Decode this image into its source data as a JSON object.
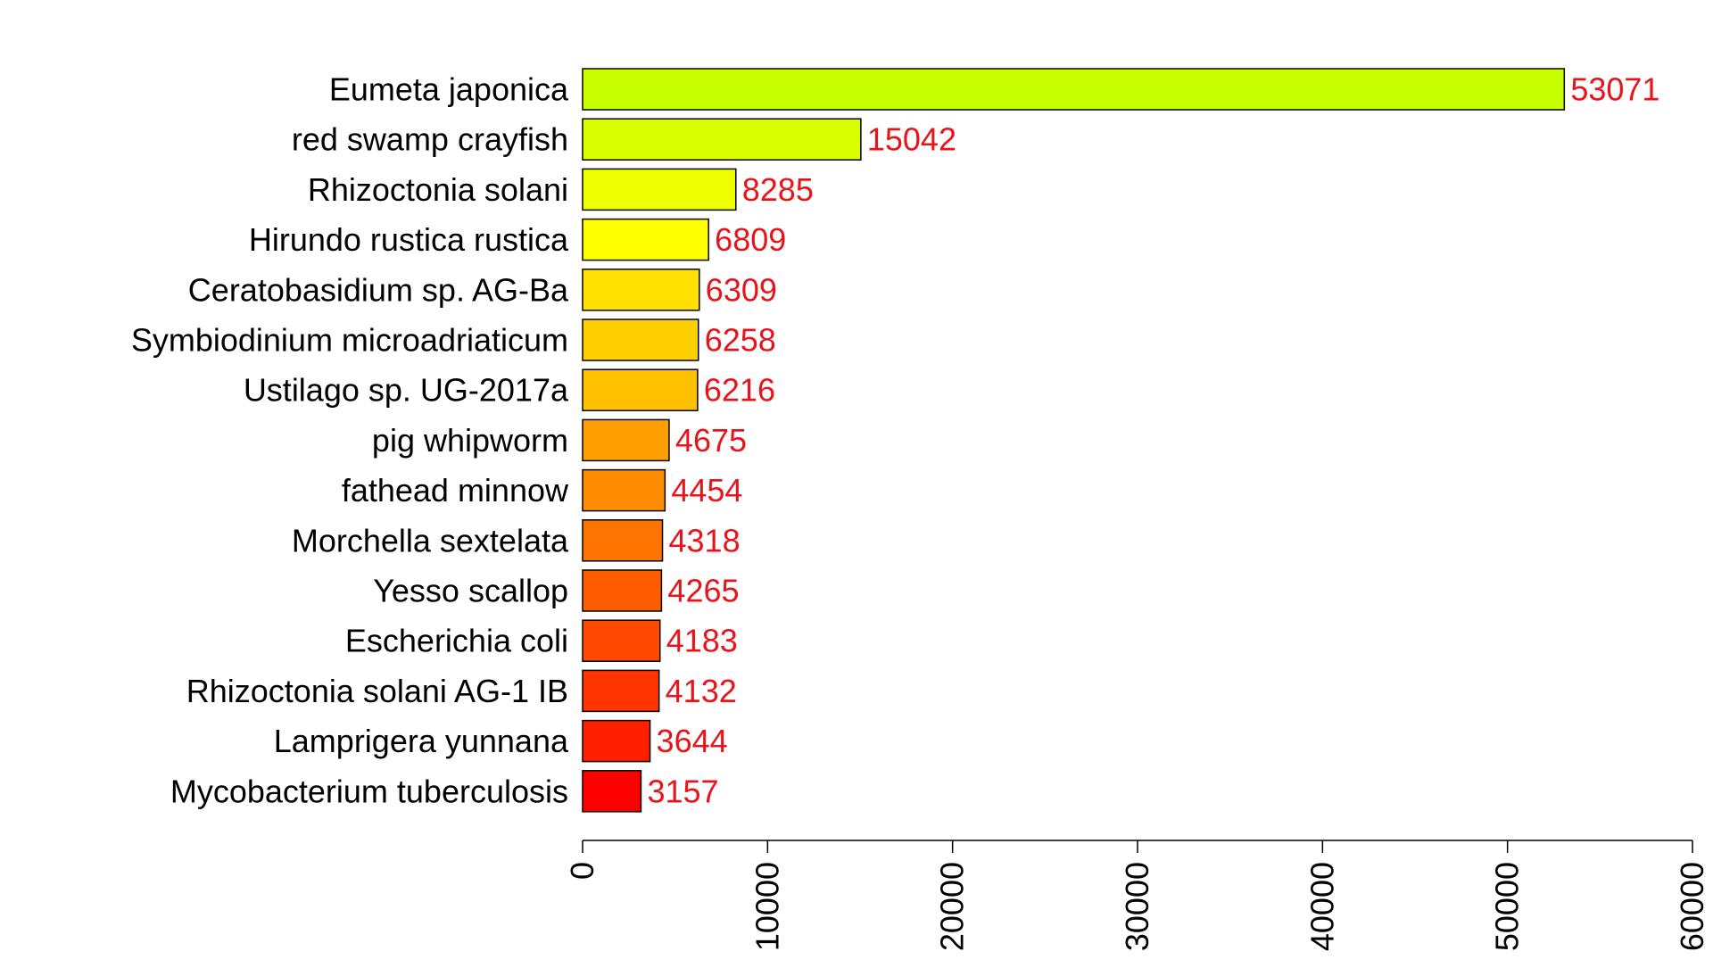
{
  "chart_data": {
    "type": "bar",
    "orientation": "horizontal",
    "title": "",
    "xlabel": "",
    "ylabel": "",
    "categories": [
      "Eumeta japonica",
      "red swamp crayfish",
      "Rhizoctonia solani",
      "Hirundo rustica rustica",
      "Ceratobasidium sp. AG-Ba",
      "Symbiodinium microadriaticum",
      "Ustilago sp. UG-2017a",
      "pig whipworm",
      "fathead minnow",
      "Morchella sextelata",
      "Yesso scallop",
      "Escherichia coli",
      "Rhizoctonia solani AG-1 IB",
      "Lamprigera yunnana",
      "Mycobacterium tuberculosis"
    ],
    "values": [
      53071,
      15042,
      8285,
      6809,
      6309,
      6258,
      6216,
      4675,
      4454,
      4318,
      4265,
      4183,
      4132,
      3644,
      3157
    ],
    "value_labels": [
      "53071",
      "15042",
      "8285",
      "6809",
      "6309",
      "6258",
      "6216",
      "4675",
      "4454",
      "4318",
      "4265",
      "4183",
      "4132",
      "3644",
      "3157"
    ],
    "bar_colors": [
      "#C8FF00",
      "#DAFF00",
      "#EEFF00",
      "#FFFF00",
      "#FFE000",
      "#FFD000",
      "#FFC000",
      "#FFA000",
      "#FF8C00",
      "#FF7400",
      "#FF5C00",
      "#FF4800",
      "#FF3400",
      "#FF1E00",
      "#FF0000"
    ],
    "bar_outline_color": "#000000",
    "value_label_color": "#E8141C",
    "xlim": [
      0,
      60000
    ],
    "xticks": [
      0,
      10000,
      20000,
      30000,
      40000,
      50000,
      60000
    ],
    "xtick_labels": [
      "0",
      "10000",
      "20000",
      "30000",
      "40000",
      "50000",
      "60000"
    ],
    "tick_label_rotation": "vertical",
    "grid": false,
    "legend": "none"
  }
}
